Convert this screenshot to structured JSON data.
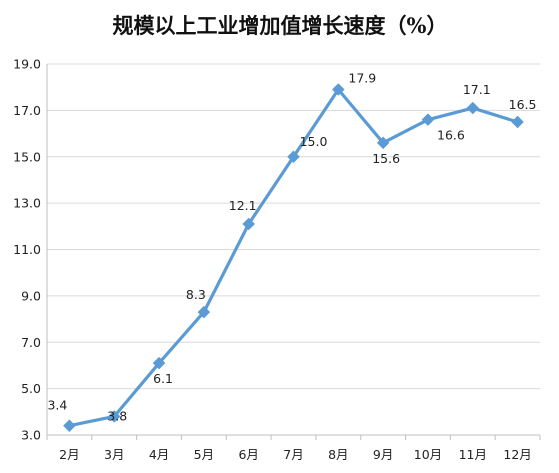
{
  "chart_data": {
    "type": "line",
    "title": "规模以上工业增加值增长速度（%）",
    "xlabel": "",
    "ylabel": "",
    "categories": [
      "2月",
      "3月",
      "4月",
      "5月",
      "6月",
      "7月",
      "8月",
      "9月",
      "10月",
      "11月",
      "12月"
    ],
    "series": [
      {
        "values": [
          3.4,
          3.8,
          6.1,
          8.3,
          12.1,
          15.0,
          17.9,
          15.6,
          16.6,
          17.1,
          16.5
        ],
        "labels": [
          "3.4",
          "3.8",
          "6.1",
          "8.3",
          "12.1",
          "15.0",
          "17.9",
          "15.6",
          "16.6",
          "17.1",
          "16.5"
        ]
      }
    ],
    "ylim": [
      3.0,
      19.0
    ],
    "yticks": [
      3.0,
      5.0,
      7.0,
      9.0,
      11.0,
      13.0,
      15.0,
      17.0,
      19.0
    ],
    "ytick_labels": [
      "3.0",
      "5.0",
      "7.0",
      "9.0",
      "11.0",
      "13.0",
      "15.0",
      "17.0",
      "19.0"
    ],
    "grid": "horizontal",
    "legend": "none",
    "line_color": "#5B9BD5",
    "grid_color": "#D9D9D9",
    "axis_color": "#BFBFBF"
  }
}
